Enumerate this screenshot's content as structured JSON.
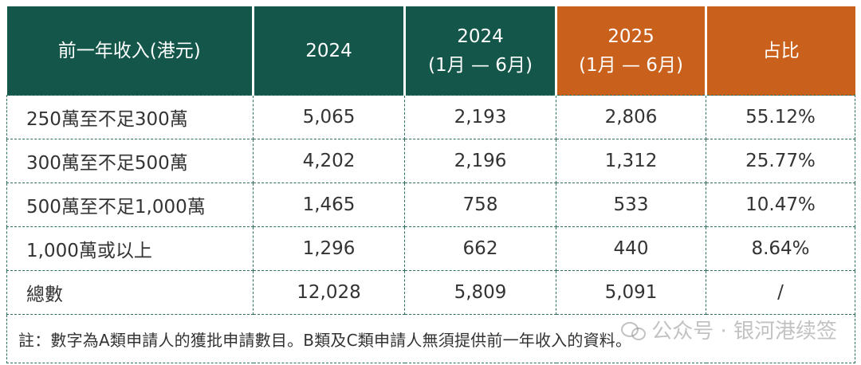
{
  "table": {
    "headers": [
      {
        "line1": "前一年收入(港元)",
        "line2": ""
      },
      {
        "line1": "2024",
        "line2": ""
      },
      {
        "line1": "2024",
        "line2": "(1月 — 6月)"
      },
      {
        "line1": "2025",
        "line2": "(1月 — 6月)"
      },
      {
        "line1": "占比",
        "line2": ""
      }
    ],
    "rows": [
      {
        "income": "250萬至不足300萬",
        "y2024": "5,065",
        "y2024h1": "2,193",
        "y2025h1": "2,806",
        "share": "55.12%"
      },
      {
        "income": "300萬至不足500萬",
        "y2024": "4,202",
        "y2024h1": "2,196",
        "y2025h1": "1,312",
        "share": "25.77%"
      },
      {
        "income": "500萬至不足1,000萬",
        "y2024": "1,465",
        "y2024h1": "758",
        "y2025h1": "533",
        "share": "10.47%"
      },
      {
        "income": "1,000萬或以上",
        "y2024": "1,296",
        "y2024h1": "662",
        "y2025h1": "440",
        "share": "8.64%"
      },
      {
        "income": "總數",
        "y2024": "12,028",
        "y2024h1": "5,809",
        "y2025h1": "5,091",
        "share": "/"
      }
    ],
    "note": "註：數字為A類申請人的獲批申請數目。B類及C類申請人無須提供前一年收入的資料。"
  },
  "watermark": {
    "text": "公众号 · 银河港续签",
    "icon": "wechat-icon"
  },
  "colors": {
    "header_green": "#14574a",
    "header_orange": "#c9601c",
    "grid_line": "#2f6f61"
  }
}
